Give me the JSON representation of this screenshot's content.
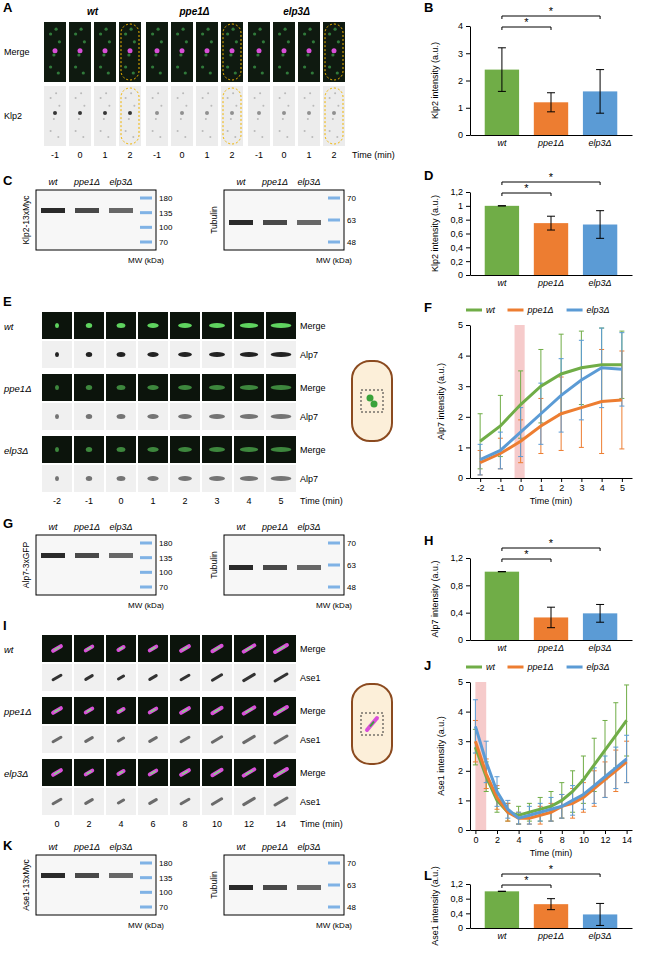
{
  "panel_labels": [
    "A",
    "B",
    "C",
    "D",
    "E",
    "F",
    "G",
    "H",
    "I",
    "J",
    "K",
    "L"
  ],
  "images": [
    {
      "strains": [
        "wt",
        "ppe1Δ",
        "elp3Δ"
      ],
      "rows": [
        "Merge",
        "Klp2"
      ],
      "times": [
        -1,
        0,
        1,
        2
      ],
      "time_label": "Time (min)"
    },
    {
      "strains": [
        "wt",
        "ppe1Δ",
        "elp3Δ"
      ],
      "rows": [
        "Merge",
        "Alp7"
      ],
      "times": [
        -2,
        -1,
        0,
        1,
        2,
        3,
        4,
        5
      ],
      "time_label": "Time (min)"
    },
    {
      "strains": [
        "wt",
        "ppe1Δ",
        "elp3Δ"
      ],
      "rows": [
        "Merge",
        "Ase1"
      ],
      "times": [
        0,
        2,
        4,
        6,
        8,
        10,
        12,
        14
      ],
      "time_label": "Time (min)"
    }
  ],
  "blots": [
    [
      {
        "title": "Klp2-13xMyc",
        "lanes": [
          "wt",
          "ppe1Δ",
          "elp3Δ"
        ],
        "mw": [
          180,
          135,
          100,
          70
        ],
        "mw_label": "MW (kDa)"
      },
      {
        "title": "Tubulin",
        "lanes": [
          "wt",
          "ppe1Δ",
          "elp3Δ"
        ],
        "mw": [
          70,
          63,
          48
        ],
        "mw_label": "MW (kDa)"
      }
    ],
    [
      {
        "title": "Alp7-3xGFP",
        "lanes": [
          "wt",
          "ppe1Δ",
          "elp3Δ"
        ],
        "mw": [
          180,
          135,
          100,
          70
        ],
        "mw_label": "MW (kDa)"
      },
      {
        "title": "Tubulin",
        "lanes": [
          "wt",
          "ppe1Δ",
          "elp3Δ"
        ],
        "mw": [
          70,
          63,
          48
        ],
        "mw_label": "MW (kDa)"
      }
    ],
    [
      {
        "title": "Ase1-13xMyc",
        "lanes": [
          "wt",
          "ppe1Δ",
          "elp3Δ"
        ],
        "mw": [
          180,
          135,
          100,
          70
        ],
        "mw_label": "MW (kDa)"
      },
      {
        "title": "Tubulin",
        "lanes": [
          "wt",
          "ppe1Δ",
          "elp3Δ"
        ],
        "mw": [
          70,
          63,
          48
        ],
        "mw_label": "MW (kDa)"
      }
    ]
  ],
  "chart_data": [
    {
      "type": "bar",
      "categories": [
        "wt",
        "ppe1Δ",
        "elp3Δ"
      ],
      "values": [
        2.4,
        1.2,
        1.6
      ],
      "errors": [
        0.8,
        0.35,
        0.8
      ],
      "colors": [
        "#70ad47",
        "#ed7d31",
        "#5b9bd5"
      ],
      "y_label": "Klp2 intensity (a.u.)",
      "ylim": [
        0,
        4
      ],
      "yticks": [
        0,
        1,
        2,
        3,
        4
      ],
      "annotations": [
        "*",
        "*"
      ]
    },
    {
      "type": "bar",
      "categories": [
        "wt",
        "ppe1Δ",
        "elp3Δ"
      ],
      "values": [
        1,
        0.75,
        0.73
      ],
      "errors": [
        0,
        0.1,
        0.2
      ],
      "colors": [
        "#70ad47",
        "#ed7d31",
        "#5b9bd5"
      ],
      "y_label": "Klp2 intensity (a.u.)",
      "ylim": [
        0,
        1.2
      ],
      "yticks": [
        0,
        {
          "value": 0.2,
          "label": "0,2"
        },
        {
          "value": 0.4,
          "label": "0,4"
        },
        {
          "value": 0.6,
          "label": "0,6"
        },
        {
          "value": 0.8,
          "label": "0,8"
        },
        1,
        {
          "value": 1.2,
          "label": "1,2"
        }
      ],
      "annotations": [
        "*",
        "*"
      ]
    },
    {
      "type": "line",
      "x": [
        -2,
        -1,
        0,
        1,
        2,
        3,
        4,
        5
      ],
      "xlim": [
        -2.5,
        5.5
      ],
      "xticks": [
        -2,
        -1,
        0,
        1,
        2,
        3,
        4,
        5
      ],
      "ylim": [
        0,
        5
      ],
      "yticks": [
        0,
        1,
        2,
        3,
        4,
        5
      ],
      "x_label": "Time (min)",
      "y_label": "Alp7 intensity (a.u.)",
      "legend": "top",
      "highlight": [
        -0.3,
        0.2
      ],
      "series": [
        {
          "name": "wt",
          "color": "#70ad47",
          "values": [
            1.2,
            1.7,
            2.4,
            3.0,
            3.4,
            3.6,
            3.7,
            3.7
          ],
          "errors": [
            0.9,
            1.0,
            1.1,
            1.2,
            1.3,
            1.2,
            1.2,
            1.1
          ]
        },
        {
          "name": "ppe1Δ",
          "color": "#ed7d31",
          "values": [
            0.5,
            0.8,
            1.2,
            1.7,
            2.1,
            2.3,
            2.5,
            2.55
          ],
          "errors": [
            0.4,
            0.5,
            0.7,
            0.9,
            1.2,
            1.3,
            1.7,
            1.6
          ]
        },
        {
          "name": "elp3Δ",
          "color": "#5b9bd5",
          "values": [
            0.6,
            0.9,
            1.5,
            2.1,
            2.7,
            3.2,
            3.6,
            3.55
          ],
          "errors": [
            0.5,
            0.6,
            0.8,
            1.0,
            1.2,
            1.3,
            1.3,
            1.2
          ]
        }
      ]
    },
    {
      "type": "bar",
      "categories": [
        "wt",
        "ppe1Δ",
        "elp3Δ"
      ],
      "values": [
        1,
        0.33,
        0.39
      ],
      "errors": [
        0,
        0.15,
        0.13
      ],
      "colors": [
        "#70ad47",
        "#ed7d31",
        "#5b9bd5"
      ],
      "y_label": "Alp7 intensity (a.u.)",
      "ylim": [
        0,
        1.2
      ],
      "yticks": [
        0,
        {
          "value": 0.4,
          "label": "0,4"
        },
        {
          "value": 0.8,
          "label": "0,8"
        },
        {
          "value": 1.2,
          "label": "1,2"
        }
      ],
      "annotations": [
        "*",
        "*"
      ]
    },
    {
      "type": "line",
      "x": [
        0,
        1,
        2,
        3,
        4,
        5,
        6,
        7,
        8,
        9,
        10,
        11,
        12,
        13,
        14
      ],
      "xlim": [
        -0.5,
        14.5
      ],
      "xticks": [
        0,
        2,
        4,
        6,
        8,
        10,
        12,
        14
      ],
      "ylim": [
        0,
        5
      ],
      "yticks": [
        0,
        1,
        2,
        3,
        4,
        5
      ],
      "x_label": "Time (min)",
      "y_label": "Ase1 intensity (a.u.)",
      "legend": "top",
      "highlight": [
        0,
        1
      ],
      "series": [
        {
          "name": "wt",
          "color": "#70ad47",
          "values": [
            2.8,
            1.8,
            1.0,
            0.6,
            0.5,
            0.6,
            0.7,
            0.8,
            1.0,
            1.3,
            1.7,
            2.2,
            2.7,
            3.2,
            3.7
          ],
          "errors": [
            0.6,
            0.5,
            0.4,
            0.3,
            0.3,
            0.3,
            0.4,
            0.5,
            0.6,
            0.7,
            0.8,
            0.9,
            1.0,
            1.1,
            1.2
          ]
        },
        {
          "name": "ppe1Δ",
          "color": "#ed7d31",
          "values": [
            3.0,
            1.9,
            1.1,
            0.6,
            0.4,
            0.4,
            0.5,
            0.6,
            0.8,
            0.9,
            1.1,
            1.4,
            1.7,
            2.0,
            2.3
          ],
          "errors": [
            0.7,
            0.5,
            0.4,
            0.3,
            0.2,
            0.2,
            0.3,
            0.3,
            0.4,
            0.5,
            0.5,
            0.6,
            0.6,
            0.7,
            0.7
          ]
        },
        {
          "name": "elp3Δ",
          "color": "#5b9bd5",
          "values": [
            3.5,
            2.3,
            1.3,
            0.7,
            0.4,
            0.5,
            0.6,
            0.7,
            0.8,
            1.0,
            1.2,
            1.5,
            1.8,
            2.1,
            2.4
          ],
          "errors": [
            0.9,
            0.7,
            0.5,
            0.3,
            0.2,
            0.3,
            0.3,
            0.4,
            0.4,
            0.5,
            0.5,
            0.6,
            0.7,
            0.7,
            0.8
          ]
        }
      ]
    },
    {
      "type": "bar",
      "categories": [
        "wt",
        "ppe1Δ",
        "elp3Δ"
      ],
      "values": [
        1,
        0.65,
        0.37
      ],
      "errors": [
        0,
        0.15,
        0.3
      ],
      "colors": [
        "#70ad47",
        "#ed7d31",
        "#5b9bd5"
      ],
      "y_label": "Ase1 intensity (a.u.)",
      "ylim": [
        0,
        1.2
      ],
      "yticks": [
        0,
        {
          "value": 0.4,
          "label": "0,4"
        },
        {
          "value": 0.8,
          "label": "0,8"
        },
        {
          "value": 1.2,
          "label": "1,2"
        }
      ],
      "annotations": [
        "*",
        "*"
      ]
    }
  ]
}
